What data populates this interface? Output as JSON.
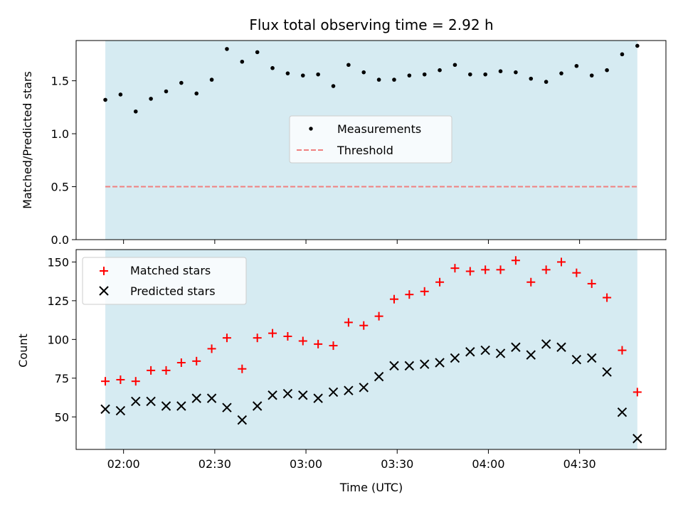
{
  "title": "Flux total observing time = 2.92 h",
  "colors": {
    "span": "#add8e6",
    "measure": "#000000",
    "threshold": "#f08080",
    "matched": "#ff0000",
    "predicted": "#000000"
  },
  "chart_data": [
    {
      "type": "scatter",
      "panel": "top",
      "xlabel": "",
      "ylabel": "Matched/Predicted stars",
      "ylim": [
        0,
        1.88
      ],
      "yticks": [
        0.0,
        0.5,
        1.0,
        1.5
      ],
      "ytick_labels": [
        "0.0",
        "0.5",
        "1.0",
        "1.5"
      ],
      "x_minutes_from_0200": [
        -6,
        -1,
        4,
        9,
        14,
        19,
        24,
        29,
        34,
        39,
        44,
        49,
        54,
        59,
        64,
        69,
        74,
        79,
        84,
        89,
        94,
        99,
        104,
        109,
        114,
        119,
        124,
        129,
        134,
        139,
        144,
        149,
        154,
        159,
        164,
        169
      ],
      "series": [
        {
          "name": "Measurements",
          "values": [
            1.32,
            1.37,
            1.21,
            1.33,
            1.4,
            1.48,
            1.38,
            1.51,
            1.8,
            1.68,
            1.77,
            1.62,
            1.57,
            1.55,
            1.56,
            1.45,
            1.65,
            1.58,
            1.51,
            1.51,
            1.55,
            1.56,
            1.6,
            1.65,
            1.56,
            1.56,
            1.59,
            1.58,
            1.52,
            1.49,
            1.57,
            1.64,
            1.55,
            1.6,
            1.75,
            1.83
          ]
        },
        {
          "name": "Threshold",
          "values": [
            0.5
          ]
        }
      ],
      "span_x_minutes": [
        -6,
        169
      ],
      "legend": {
        "position": "center",
        "entries": [
          "Measurements",
          "Threshold"
        ]
      }
    },
    {
      "type": "scatter",
      "panel": "bottom",
      "xlabel": "Time (UTC)",
      "ylabel": "Count",
      "ylim": [
        29,
        158
      ],
      "yticks": [
        50,
        75,
        100,
        125,
        150
      ],
      "ytick_labels": [
        "50",
        "75",
        "100",
        "125",
        "150"
      ],
      "xticks_minutes": [
        0,
        30,
        60,
        90,
        120,
        150
      ],
      "xtick_labels": [
        "02:00",
        "02:30",
        "03:00",
        "03:30",
        "04:00",
        "04:30"
      ],
      "x_minutes_from_0200": [
        -6,
        -1,
        4,
        9,
        14,
        19,
        24,
        29,
        34,
        39,
        44,
        49,
        54,
        59,
        64,
        69,
        74,
        79,
        84,
        89,
        94,
        99,
        104,
        109,
        114,
        119,
        124,
        129,
        134,
        139,
        144,
        149,
        154,
        159,
        164,
        169
      ],
      "series": [
        {
          "name": "Matched stars",
          "values": [
            73,
            74,
            73,
            80,
            80,
            85,
            86,
            94,
            101,
            81,
            101,
            104,
            102,
            99,
            97,
            96,
            111,
            109,
            115,
            126,
            129,
            131,
            137,
            146,
            144,
            145,
            145,
            151,
            137,
            145,
            150,
            143,
            136,
            127,
            93,
            66
          ]
        },
        {
          "name": "Predicted stars",
          "values": [
            55,
            54,
            60,
            60,
            57,
            57,
            62,
            62,
            56,
            48,
            57,
            64,
            65,
            64,
            62,
            66,
            67,
            69,
            76,
            83,
            83,
            84,
            85,
            88,
            92,
            93,
            91,
            95,
            90,
            97,
            95,
            87,
            88,
            79,
            53,
            36
          ]
        }
      ],
      "span_x_minutes": [
        -6,
        169
      ],
      "legend": {
        "position": "upper left",
        "entries": [
          "Matched stars",
          "Predicted stars"
        ]
      }
    }
  ]
}
